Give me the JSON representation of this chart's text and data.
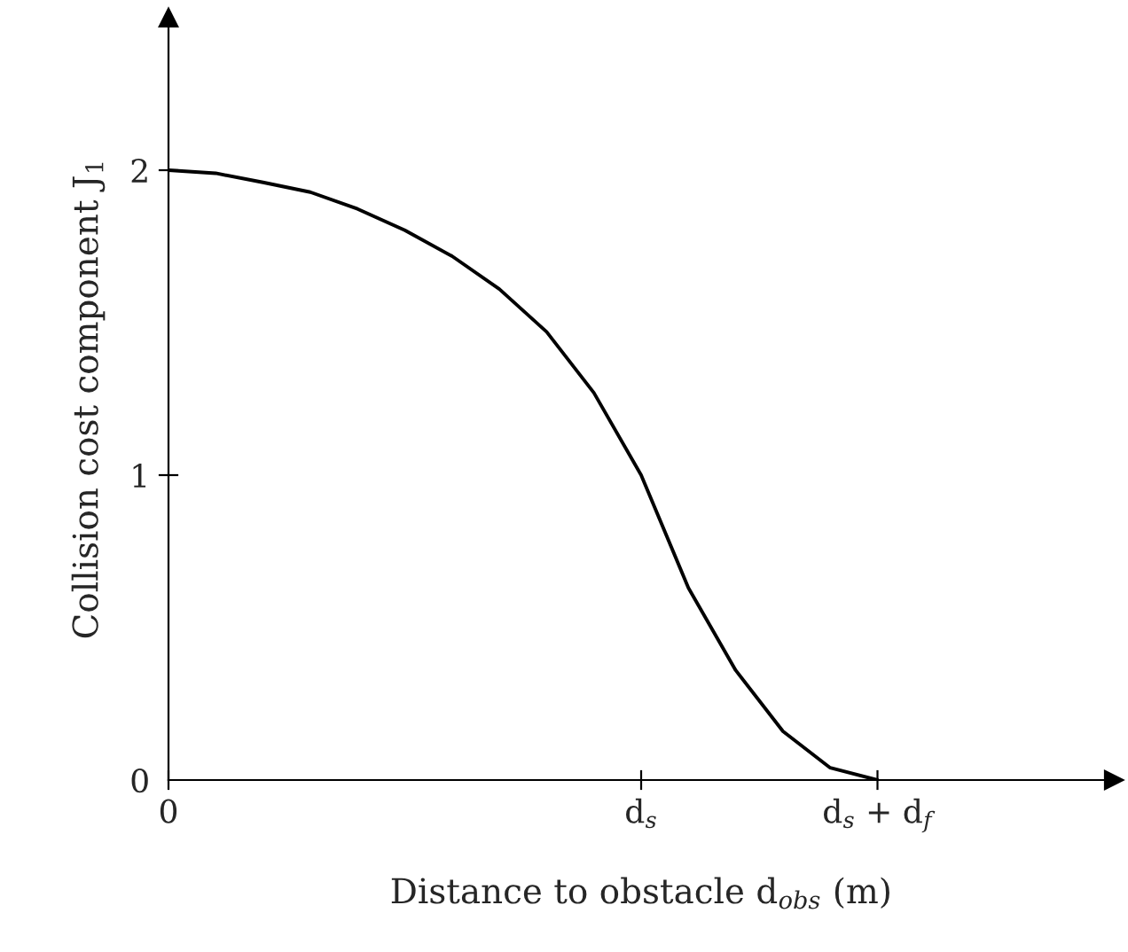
{
  "chart_data": {
    "type": "line",
    "xlabel": "Distance to obstacle d$_{obs}$ (m)",
    "ylabel": "Collision cost component J$_{1}$",
    "categories": [
      "0",
      null,
      null,
      null,
      null,
      null,
      null,
      null,
      null,
      null,
      "d$_{s}$",
      null,
      null,
      null,
      null,
      "d$_{s}$ + d$_{f}$",
      null,
      null,
      null,
      null,
      null
    ],
    "series": [
      {
        "color": "#000000",
        "values": [
          2,
          1.99,
          1.96,
          1.928,
          1.873,
          1.803,
          1.718,
          1.61,
          1.47,
          1.27,
          1.0,
          0.63,
          0.36,
          0.16,
          0.04,
          0,
          null,
          null,
          null,
          null,
          null
        ]
      }
    ],
    "ylim": [
      0,
      2.5
    ],
    "yticks": [
      0,
      1,
      2
    ],
    "grid": false,
    "legend": false,
    "marker": "none",
    "line_style": "solid"
  }
}
